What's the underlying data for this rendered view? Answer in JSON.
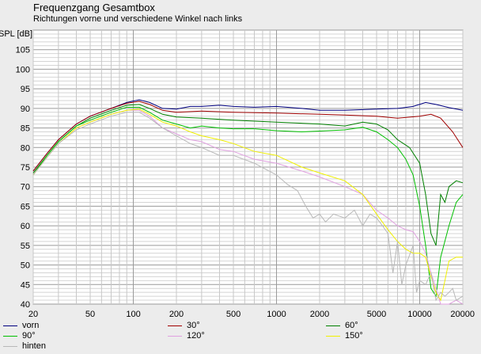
{
  "chart_data": {
    "type": "line",
    "title": "Frequenzgang Gesamtbox",
    "subtitle": "Richtungen vorne und verschiedene Winkel nach links",
    "ylabel": "SPL [dB]",
    "xlabel": "",
    "xscale": "log",
    "xlim": [
      20,
      20000
    ],
    "ylim": [
      40,
      110
    ],
    "grid": true,
    "x_ticks": [
      20,
      50,
      100,
      200,
      500,
      1000,
      2000,
      5000,
      10000,
      20000
    ],
    "y_ticks": [
      40,
      45,
      50,
      55,
      60,
      65,
      70,
      75,
      80,
      85,
      90,
      95,
      100,
      105
    ],
    "series": [
      {
        "name": "vorn",
        "color": "#000080",
        "points": [
          [
            20,
            74
          ],
          [
            25,
            78.5
          ],
          [
            30,
            82
          ],
          [
            40,
            86
          ],
          [
            50,
            88
          ],
          [
            70,
            90
          ],
          [
            90,
            91.5
          ],
          [
            110,
            92.2
          ],
          [
            130,
            91.5
          ],
          [
            160,
            90
          ],
          [
            200,
            89.8
          ],
          [
            250,
            90.5
          ],
          [
            300,
            90.5
          ],
          [
            400,
            90.8
          ],
          [
            500,
            90.5
          ],
          [
            700,
            90.3
          ],
          [
            1000,
            90.5
          ],
          [
            1500,
            90
          ],
          [
            2000,
            89.5
          ],
          [
            3000,
            89.5
          ],
          [
            5000,
            89.8
          ],
          [
            7000,
            90
          ],
          [
            9000,
            90.5
          ],
          [
            11000,
            91.5
          ],
          [
            13000,
            91
          ],
          [
            16000,
            90.2
          ],
          [
            20000,
            89.5
          ]
        ]
      },
      {
        "name": "30°",
        "color": "#a00000",
        "points": [
          [
            20,
            74
          ],
          [
            25,
            78.5
          ],
          [
            30,
            82
          ],
          [
            40,
            86
          ],
          [
            50,
            88
          ],
          [
            70,
            90
          ],
          [
            90,
            91.3
          ],
          [
            110,
            91.8
          ],
          [
            130,
            91
          ],
          [
            160,
            89.5
          ],
          [
            200,
            89
          ],
          [
            300,
            89.3
          ],
          [
            500,
            89
          ],
          [
            1000,
            88.8
          ],
          [
            2000,
            88.5
          ],
          [
            3000,
            88.3
          ],
          [
            5000,
            88
          ],
          [
            7000,
            87.5
          ],
          [
            10000,
            88
          ],
          [
            12000,
            88.5
          ],
          [
            14000,
            87.5
          ],
          [
            17000,
            84
          ],
          [
            20000,
            80
          ]
        ]
      },
      {
        "name": "60°",
        "color": "#008000",
        "points": [
          [
            20,
            73.5
          ],
          [
            25,
            78
          ],
          [
            30,
            81.5
          ],
          [
            40,
            85.5
          ],
          [
            50,
            87.5
          ],
          [
            70,
            89.5
          ],
          [
            90,
            90.8
          ],
          [
            110,
            91
          ],
          [
            130,
            90
          ],
          [
            160,
            88.5
          ],
          [
            200,
            87.8
          ],
          [
            300,
            87.5
          ],
          [
            500,
            87
          ],
          [
            1000,
            86.5
          ],
          [
            2000,
            86
          ],
          [
            3000,
            85.5
          ],
          [
            4000,
            86.5
          ],
          [
            5000,
            86
          ],
          [
            6000,
            84.5
          ],
          [
            7000,
            82
          ],
          [
            8500,
            80
          ],
          [
            10000,
            76
          ],
          [
            11000,
            68
          ],
          [
            12000,
            58
          ],
          [
            13000,
            55
          ],
          [
            14000,
            68
          ],
          [
            15000,
            66
          ],
          [
            16000,
            70
          ],
          [
            18000,
            71.5
          ],
          [
            20000,
            71
          ]
        ]
      },
      {
        "name": "90°",
        "color": "#00c000",
        "points": [
          [
            20,
            73
          ],
          [
            25,
            78
          ],
          [
            30,
            81.5
          ],
          [
            40,
            85.5
          ],
          [
            50,
            87
          ],
          [
            70,
            89
          ],
          [
            90,
            90.3
          ],
          [
            110,
            90.3
          ],
          [
            130,
            89
          ],
          [
            160,
            87
          ],
          [
            200,
            86
          ],
          [
            250,
            85
          ],
          [
            300,
            85.5
          ],
          [
            400,
            85
          ],
          [
            500,
            84.8
          ],
          [
            700,
            84.8
          ],
          [
            1000,
            84.3
          ],
          [
            1500,
            84
          ],
          [
            2000,
            84.2
          ],
          [
            3000,
            84.5
          ],
          [
            4000,
            85.2
          ],
          [
            5000,
            84
          ],
          [
            6000,
            82
          ],
          [
            7000,
            80
          ],
          [
            8000,
            77
          ],
          [
            9000,
            73
          ],
          [
            10000,
            65
          ],
          [
            11000,
            55
          ],
          [
            12000,
            44
          ],
          [
            13000,
            42
          ],
          [
            14000,
            52
          ],
          [
            16000,
            60
          ],
          [
            18000,
            66
          ],
          [
            20000,
            68
          ]
        ]
      },
      {
        "name": "120°",
        "color": "#e0a0e0",
        "points": [
          [
            20,
            73
          ],
          [
            25,
            77.5
          ],
          [
            30,
            81
          ],
          [
            40,
            85
          ],
          [
            50,
            86.5
          ],
          [
            70,
            88.5
          ],
          [
            90,
            89.5
          ],
          [
            110,
            89.5
          ],
          [
            130,
            88
          ],
          [
            160,
            85
          ],
          [
            200,
            83.5
          ],
          [
            250,
            82
          ],
          [
            300,
            81.5
          ],
          [
            400,
            79.5
          ],
          [
            500,
            79
          ],
          [
            700,
            77
          ],
          [
            1000,
            76
          ],
          [
            1500,
            74
          ],
          [
            2000,
            72.5
          ],
          [
            3000,
            70
          ],
          [
            4000,
            68
          ],
          [
            5000,
            64
          ],
          [
            6000,
            62
          ],
          [
            7000,
            60
          ],
          [
            8000,
            59
          ],
          [
            9000,
            58.5
          ],
          [
            10000,
            56
          ],
          [
            11000,
            53
          ],
          [
            12000,
            48
          ],
          [
            13000,
            44
          ],
          [
            14000,
            40
          ],
          [
            16000,
            40
          ],
          [
            18000,
            41
          ],
          [
            20000,
            40
          ]
        ]
      },
      {
        "name": "150°",
        "color": "#f0f000",
        "points": [
          [
            20,
            73
          ],
          [
            25,
            77.5
          ],
          [
            30,
            81
          ],
          [
            40,
            85
          ],
          [
            50,
            86.5
          ],
          [
            70,
            88.5
          ],
          [
            90,
            89.5
          ],
          [
            110,
            89.8
          ],
          [
            130,
            88.5
          ],
          [
            160,
            86.5
          ],
          [
            200,
            85.5
          ],
          [
            250,
            84
          ],
          [
            300,
            83
          ],
          [
            400,
            82
          ],
          [
            500,
            81
          ],
          [
            700,
            79
          ],
          [
            1000,
            78
          ],
          [
            1500,
            75
          ],
          [
            2000,
            73.5
          ],
          [
            3000,
            71.5
          ],
          [
            4000,
            68
          ],
          [
            5000,
            63
          ],
          [
            6000,
            59
          ],
          [
            7000,
            56
          ],
          [
            8000,
            54
          ],
          [
            9000,
            53
          ],
          [
            10000,
            53
          ],
          [
            11000,
            52
          ],
          [
            12000,
            47
          ],
          [
            13000,
            43
          ],
          [
            14000,
            41
          ],
          [
            15000,
            46
          ],
          [
            16000,
            51
          ],
          [
            18000,
            52
          ],
          [
            20000,
            52
          ]
        ]
      },
      {
        "name": "hinten",
        "color": "#b8b8b8",
        "points": [
          [
            20,
            73
          ],
          [
            25,
            77.5
          ],
          [
            30,
            81
          ],
          [
            40,
            84.5
          ],
          [
            50,
            86
          ],
          [
            70,
            88
          ],
          [
            90,
            89
          ],
          [
            110,
            89
          ],
          [
            130,
            87.5
          ],
          [
            160,
            85
          ],
          [
            200,
            83
          ],
          [
            250,
            81
          ],
          [
            300,
            80
          ],
          [
            400,
            78
          ],
          [
            500,
            78
          ],
          [
            700,
            76
          ],
          [
            1000,
            73
          ],
          [
            1200,
            70.5
          ],
          [
            1400,
            69
          ],
          [
            1600,
            65
          ],
          [
            1800,
            62
          ],
          [
            2000,
            63
          ],
          [
            2200,
            61
          ],
          [
            2500,
            63
          ],
          [
            3000,
            62
          ],
          [
            3500,
            64
          ],
          [
            4000,
            60
          ],
          [
            4500,
            63
          ],
          [
            5000,
            62
          ],
          [
            5500,
            60
          ],
          [
            6000,
            58
          ],
          [
            6500,
            48
          ],
          [
            7000,
            56
          ],
          [
            7500,
            45
          ],
          [
            8000,
            50
          ],
          [
            9000,
            55
          ],
          [
            9500,
            43
          ],
          [
            10000,
            46
          ],
          [
            11000,
            45
          ],
          [
            12000,
            48
          ],
          [
            13000,
            41
          ],
          [
            14000,
            43
          ],
          [
            15000,
            42
          ],
          [
            16000,
            43
          ],
          [
            17000,
            44
          ],
          [
            18000,
            41
          ],
          [
            20000,
            42
          ]
        ]
      }
    ]
  },
  "legend": [
    {
      "name": "vorn",
      "color": "#000080"
    },
    {
      "name": "30°",
      "color": "#a00000"
    },
    {
      "name": "60°",
      "color": "#008000"
    },
    {
      "name": "90°",
      "color": "#00c000"
    },
    {
      "name": "120°",
      "color": "#e0a0e0"
    },
    {
      "name": "150°",
      "color": "#f0f000"
    },
    {
      "name": "hinten",
      "color": "#b8b8b8"
    }
  ]
}
